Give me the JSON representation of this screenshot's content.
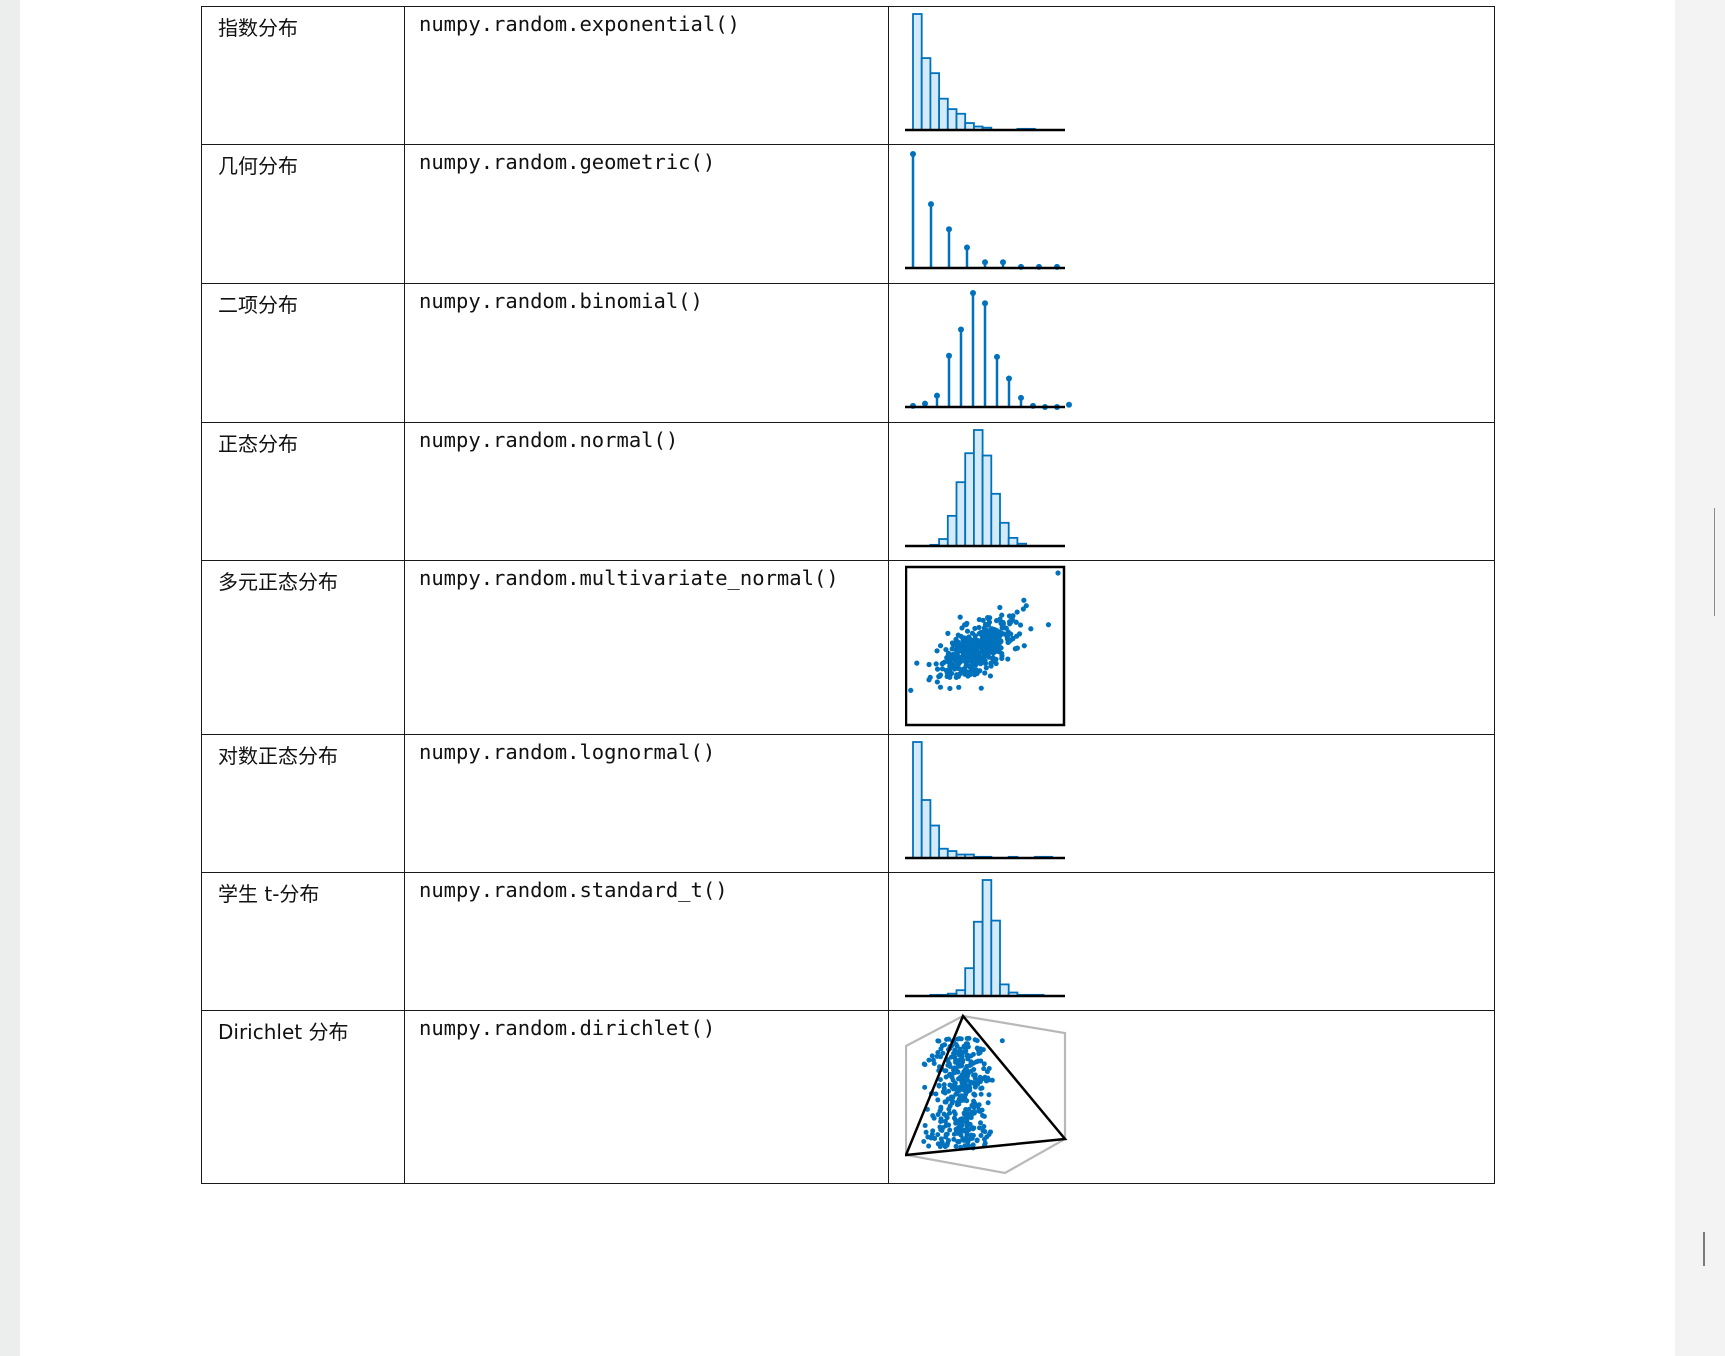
{
  "colors": {
    "accent": "#0072bd",
    "bar_fill": "#d5eaf8",
    "axis": "#000000",
    "tetra_outline": "#b8b8b8"
  },
  "rows": [
    {
      "name": "指数分布",
      "func": "numpy.random.exponential()",
      "plot": "histogram",
      "chart_data": {
        "type": "bar",
        "values": [
          100,
          62,
          49,
          27,
          18,
          14,
          6,
          3,
          2,
          0,
          0,
          0,
          1,
          1,
          0,
          0
        ]
      }
    },
    {
      "name": "几何分布",
      "func": "numpy.random.geometric()",
      "plot": "stem",
      "chart_data": {
        "type": "stem",
        "x": [
          1,
          2,
          3,
          4,
          5,
          6,
          7,
          8,
          9
        ],
        "values": [
          100,
          56,
          34,
          18,
          5,
          5,
          1,
          1,
          1
        ]
      }
    },
    {
      "name": "二项分布",
      "func": "numpy.random.binomial()",
      "plot": "stem",
      "chart_data": {
        "type": "stem",
        "x": [
          0,
          1,
          2,
          3,
          4,
          5,
          6,
          7,
          8,
          9,
          10,
          11,
          12,
          13
        ],
        "values": [
          1,
          3,
          10,
          45,
          68,
          100,
          91,
          44,
          25,
          8,
          1,
          0,
          0,
          2
        ]
      }
    },
    {
      "name": "正态分布",
      "func": "numpy.random.normal()",
      "plot": "histogram",
      "chart_data": {
        "type": "bar",
        "values": [
          0,
          0,
          1,
          6,
          26,
          55,
          80,
          100,
          78,
          45,
          20,
          7,
          2,
          0,
          0,
          0
        ]
      }
    },
    {
      "name": "多元正态分布",
      "func": "numpy.random.multivariate_normal()",
      "plot": "scatter",
      "chart_data": {
        "type": "scatter",
        "n_points": 420,
        "mean": [
          0.45,
          0.52
        ],
        "spread": [
          0.13,
          0.1
        ]
      }
    },
    {
      "name": "对数正态分布",
      "func": "numpy.random.lognormal()",
      "plot": "histogram",
      "chart_data": {
        "type": "bar",
        "values": [
          100,
          50,
          28,
          8,
          6,
          3,
          3,
          1,
          1,
          0,
          0,
          1,
          0,
          0,
          1,
          1
        ]
      }
    },
    {
      "name": "学生 t-分布",
      "func": "numpy.random.standard_t()",
      "plot": "histogram",
      "chart_data": {
        "type": "bar",
        "values": [
          0,
          0,
          1,
          1,
          2,
          5,
          24,
          64,
          100,
          65,
          10,
          3,
          1,
          1,
          1,
          0
        ]
      }
    },
    {
      "name": "Dirichlet 分布",
      "func": "numpy.random.dirichlet()",
      "plot": "simplex",
      "chart_data": {
        "type": "scatter",
        "n_points": 380
      }
    }
  ]
}
